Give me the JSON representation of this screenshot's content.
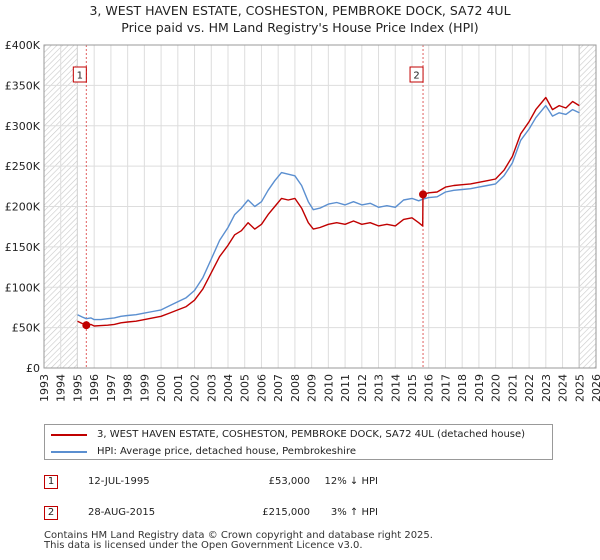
{
  "chart_data": {
    "type": "line",
    "title": "3, WEST HAVEN ESTATE, COSHESTON, PEMBROKE DOCK, SA72 4UL",
    "subtitle": "Price paid vs. HM Land Registry's House Price Index (HPI)",
    "xlabel": "",
    "ylabel": "",
    "xlim": [
      1993,
      2026
    ],
    "ylim": [
      0,
      400000
    ],
    "x_ticks": [
      "1993",
      "1994",
      "1995",
      "1996",
      "1997",
      "1998",
      "1999",
      "2000",
      "2001",
      "2002",
      "2003",
      "2004",
      "2005",
      "2006",
      "2007",
      "2008",
      "2009",
      "2010",
      "2011",
      "2012",
      "2013",
      "2014",
      "2015",
      "2016",
      "2017",
      "2018",
      "2019",
      "2020",
      "2021",
      "2022",
      "2023",
      "2024",
      "2025",
      "2026"
    ],
    "y_ticks": [
      {
        "value": 0,
        "label": "£0"
      },
      {
        "value": 50000,
        "label": "£50K"
      },
      {
        "value": 100000,
        "label": "£100K"
      },
      {
        "value": 150000,
        "label": "£150K"
      },
      {
        "value": 200000,
        "label": "£200K"
      },
      {
        "value": 250000,
        "label": "£250K"
      },
      {
        "value": 300000,
        "label": "£300K"
      },
      {
        "value": 350000,
        "label": "£350K"
      },
      {
        "value": 400000,
        "label": "£400K"
      }
    ],
    "grid": true,
    "hatched_ranges": [
      [
        1993,
        1995.0
      ],
      [
        2025.0,
        2026
      ]
    ],
    "series": [
      {
        "name": "3, WEST HAVEN ESTATE, COSHESTON, PEMBROKE DOCK, SA72 4UL (detached house)",
        "color": "#c00000",
        "x": [
          1995.0,
          1995.3,
          1995.53,
          1995.8,
          1996.0,
          1996.4,
          1996.8,
          1997.2,
          1997.6,
          1998.0,
          1998.5,
          1999.0,
          1999.5,
          2000.0,
          2000.5,
          2001.0,
          2001.5,
          2002.0,
          2002.5,
          2003.0,
          2003.5,
          2004.0,
          2004.4,
          2004.8,
          2005.2,
          2005.6,
          2006.0,
          2006.4,
          2006.8,
          2007.2,
          2007.6,
          2008.0,
          2008.4,
          2008.8,
          2009.1,
          2009.5,
          2010.0,
          2010.5,
          2011.0,
          2011.5,
          2012.0,
          2012.5,
          2013.0,
          2013.5,
          2014.0,
          2014.5,
          2015.0,
          2015.4,
          2015.64,
          2015.66,
          2016.0,
          2016.5,
          2017.0,
          2017.5,
          2018.0,
          2018.5,
          2019.0,
          2019.5,
          2020.0,
          2020.5,
          2021.0,
          2021.5,
          2022.0,
          2022.4,
          2022.8,
          2023.0,
          2023.4,
          2023.8,
          2024.2,
          2024.6,
          2025.0
        ],
        "values": [
          58000,
          55000,
          53000,
          54000,
          52000,
          52500,
          53000,
          54000,
          56000,
          57000,
          58000,
          60000,
          62000,
          64000,
          68000,
          72000,
          76000,
          84000,
          98000,
          118000,
          138000,
          152000,
          165000,
          170000,
          180000,
          172000,
          178000,
          190000,
          200000,
          210000,
          208000,
          210000,
          198000,
          180000,
          172000,
          174000,
          178000,
          180000,
          178000,
          182000,
          178000,
          180000,
          176000,
          178000,
          176000,
          184000,
          186000,
          180000,
          176000,
          215000,
          217000,
          218000,
          224000,
          226000,
          227000,
          228000,
          230000,
          232000,
          234000,
          245000,
          262000,
          290000,
          305000,
          320000,
          330000,
          335000,
          320000,
          325000,
          322000,
          330000,
          325000
        ]
      },
      {
        "name": "HPI: Average price, detached house, Pembrokeshire",
        "color": "#5b8fd0",
        "x": [
          1995.0,
          1995.3,
          1995.53,
          1995.8,
          1996.0,
          1996.4,
          1996.8,
          1997.2,
          1997.6,
          1998.0,
          1998.5,
          1999.0,
          1999.5,
          2000.0,
          2000.5,
          2001.0,
          2001.5,
          2002.0,
          2002.5,
          2003.0,
          2003.5,
          2004.0,
          2004.4,
          2004.8,
          2005.2,
          2005.6,
          2006.0,
          2006.4,
          2006.8,
          2007.2,
          2007.6,
          2008.0,
          2008.4,
          2008.8,
          2009.1,
          2009.5,
          2010.0,
          2010.5,
          2011.0,
          2011.5,
          2012.0,
          2012.5,
          2013.0,
          2013.5,
          2014.0,
          2014.5,
          2015.0,
          2015.4,
          2015.64,
          2016.0,
          2016.5,
          2017.0,
          2017.5,
          2018.0,
          2018.5,
          2019.0,
          2019.5,
          2020.0,
          2020.5,
          2021.0,
          2021.5,
          2022.0,
          2022.4,
          2022.8,
          2023.0,
          2023.4,
          2023.8,
          2024.2,
          2024.6,
          2025.0
        ],
        "values": [
          66000,
          63000,
          61000,
          62000,
          60000,
          60000,
          61000,
          62000,
          64000,
          65000,
          66000,
          68000,
          70000,
          72000,
          77000,
          82000,
          87000,
          96000,
          112000,
          135000,
          158000,
          174000,
          190000,
          198000,
          208000,
          200000,
          206000,
          220000,
          232000,
          242000,
          240000,
          238000,
          226000,
          206000,
          196000,
          198000,
          203000,
          205000,
          202000,
          206000,
          202000,
          204000,
          199000,
          201000,
          199000,
          208000,
          210000,
          207000,
          209000,
          211000,
          212000,
          218000,
          220000,
          221000,
          222000,
          224000,
          226000,
          228000,
          238000,
          254000,
          282000,
          296000,
          310000,
          320000,
          325000,
          312000,
          316000,
          314000,
          320000,
          316000
        ]
      }
    ],
    "markers": [
      {
        "label": "1",
        "x": 1995.53,
        "y": 53000
      },
      {
        "label": "2",
        "x": 2015.66,
        "y": 215000
      }
    ]
  },
  "legend": {
    "entries": [
      {
        "label": "3, WEST HAVEN ESTATE, COSHESTON, PEMBROKE DOCK, SA72 4UL (detached house)",
        "color": "#c00000"
      },
      {
        "label": "HPI: Average price, detached house, Pembrokeshire",
        "color": "#5b8fd0"
      }
    ]
  },
  "transactions": [
    {
      "num": "1",
      "date": "12-JUL-1995",
      "price": "£53,000",
      "hpi": "12% ↓ HPI"
    },
    {
      "num": "2",
      "date": "28-AUG-2015",
      "price": "£215,000",
      "hpi": "3% ↑ HPI"
    }
  ],
  "footer": {
    "line1": "Contains HM Land Registry data © Crown copyright and database right 2025.",
    "line2": "This data is licensed under the Open Government Licence v3.0."
  }
}
